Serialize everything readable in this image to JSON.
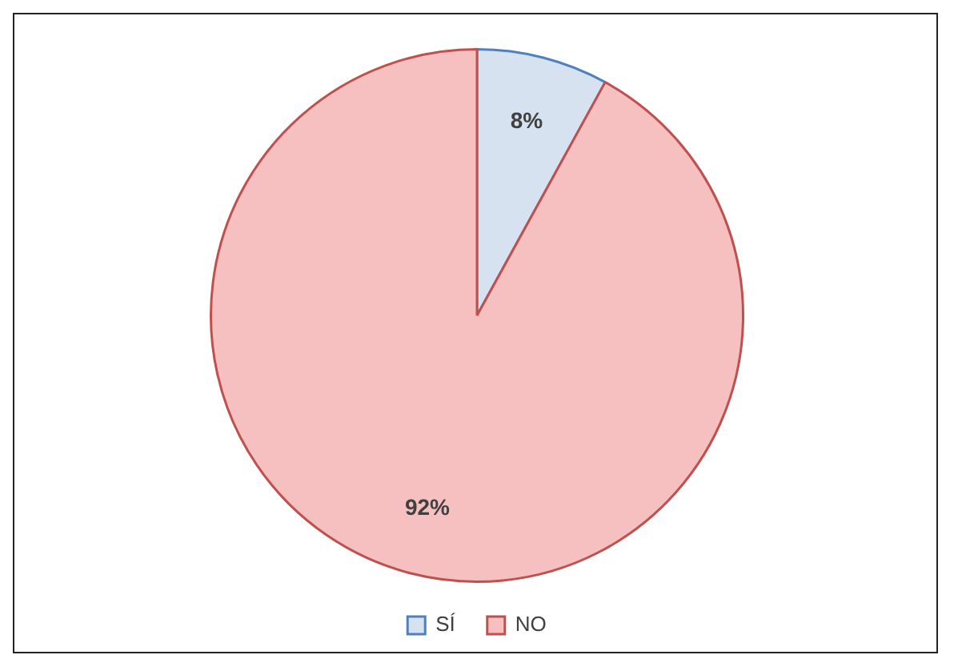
{
  "chart_data": {
    "type": "pie",
    "categories": [
      "SÍ",
      "NO"
    ],
    "values": [
      8,
      92
    ],
    "colors": [
      "#d6e2f0",
      "#f6c0c0"
    ],
    "value_labels": [
      "8%",
      "92%"
    ],
    "legend": "bottom"
  }
}
